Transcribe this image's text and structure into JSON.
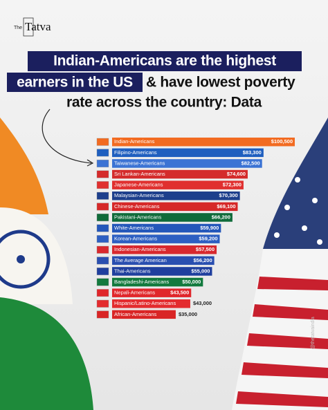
{
  "brand": {
    "small": "The",
    "name": "Tatva"
  },
  "handle": "@thetatvaindia",
  "chart_data": {
    "type": "bar",
    "orientation": "horizontal",
    "title_lines": [
      "Indian-Americans are the highest",
      "earners in the US",
      "& have lowest poverty",
      "rate across the country: Data"
    ],
    "categories": [
      "Indian-Americans",
      "Filipino-Americans",
      "Taiwanese-Americans",
      "Sri Lankan-Americans",
      "Japanese-Americans",
      "Malaysian-Americans",
      "Chinese-Americans",
      "Pakistani-Americans",
      "White-Americans",
      "Korean-Americans",
      "Indonesian-Americans",
      "The Average American",
      "Thai-Americans",
      "Bangladeshi-Americans",
      "Nepali-Americans",
      "Hispanic/Latino-Americans",
      "African-Americans"
    ],
    "values": [
      100500,
      83300,
      82500,
      74600,
      72300,
      70300,
      69100,
      66200,
      59900,
      59200,
      57500,
      56200,
      55000,
      50000,
      43500,
      43000,
      35000
    ],
    "value_labels": [
      "$100,500",
      "$83,300",
      "$82,500",
      "$74,600",
      "$72,300",
      "$70,300",
      "$69,100",
      "$66,200",
      "$59,900",
      "$59,200",
      "$57,500",
      "$56,200",
      "$55,000",
      "$50,000",
      "$43,500",
      "$43,000",
      "$35,000"
    ],
    "colors": [
      "#f26b21",
      "#1f5fbf",
      "#3b73d4",
      "#d42b2b",
      "#e0302f",
      "#1d3f8c",
      "#d62828",
      "#0f6b3a",
      "#2457ba",
      "#2d5fc2",
      "#d8282e",
      "#2a4fb0",
      "#1f3f9e",
      "#137a3e",
      "#e0262b",
      "#e32b2e",
      "#d92525"
    ]
  }
}
